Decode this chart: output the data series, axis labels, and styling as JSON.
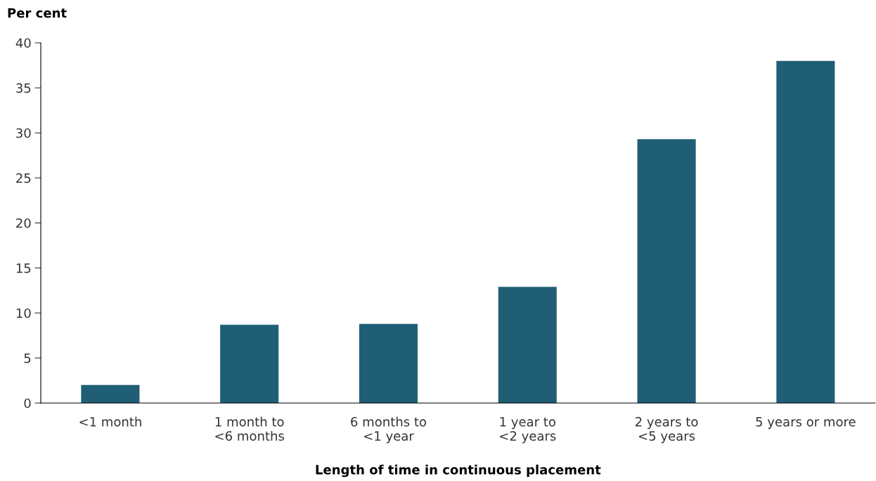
{
  "chart_data": {
    "type": "bar",
    "ylabel": "Per cent",
    "xlabel": "Length of time in continuous placement",
    "categories": [
      "<1 month",
      "1 month to\n<6 months",
      "6 months to\n<1 year",
      "1 year to\n<2 years",
      "2 years to\n<5 years",
      "5 years or more"
    ],
    "values": [
      2.0,
      8.7,
      8.8,
      12.9,
      29.3,
      38.0
    ],
    "color": "#1f5e74",
    "ylim": [
      0,
      40
    ],
    "yticks": [
      0,
      5,
      10,
      15,
      20,
      25,
      30,
      35,
      40
    ],
    "grid": false,
    "legend": false
  }
}
